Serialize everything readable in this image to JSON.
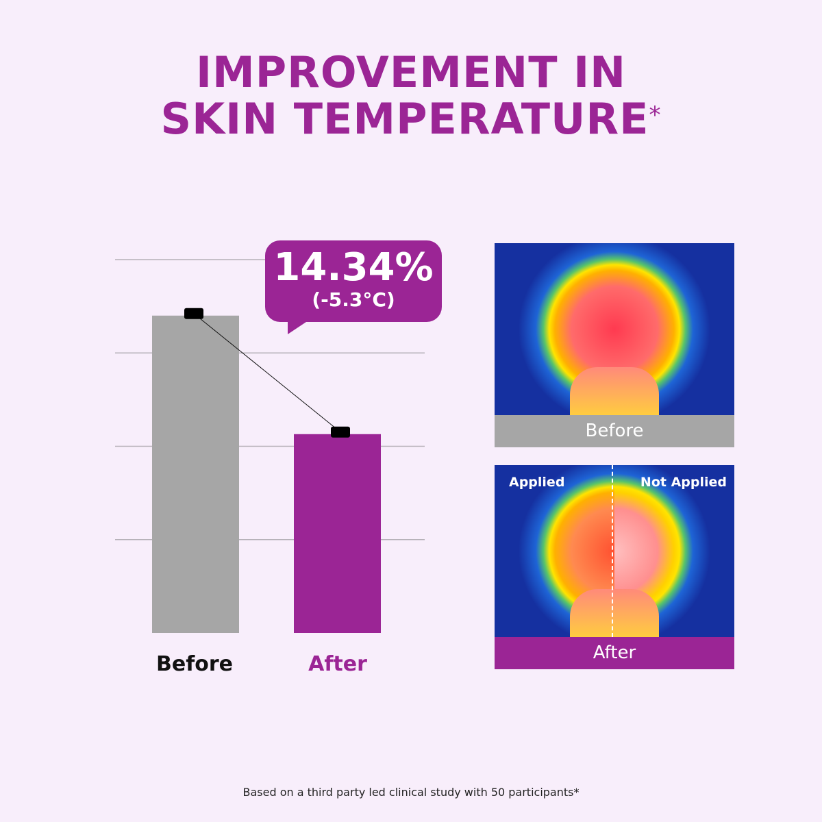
{
  "title": {
    "line1": "IMPROVEMENT IN",
    "line2": "SKIN TEMPERATURE",
    "mark": "*"
  },
  "chart_data": {
    "type": "bar",
    "categories": [
      "Before",
      "After"
    ],
    "values": [
      3.4,
      2.13
    ],
    "ylim": [
      0,
      4
    ],
    "grid": true,
    "colors": [
      "#a6a6a6",
      "#9b2595"
    ],
    "annotation": {
      "value": "14.34%",
      "sub": "(-5.3°C)"
    }
  },
  "images": {
    "before_caption": "Before",
    "after_caption": "After",
    "applied_label": "Applied",
    "not_applied_label": "Not Applied"
  },
  "footnote": "Based on a third party led clinical study with 50 participants*",
  "colors": {
    "background": "#f8eefb",
    "accent": "#9b2595",
    "grey": "#a6a6a6"
  }
}
